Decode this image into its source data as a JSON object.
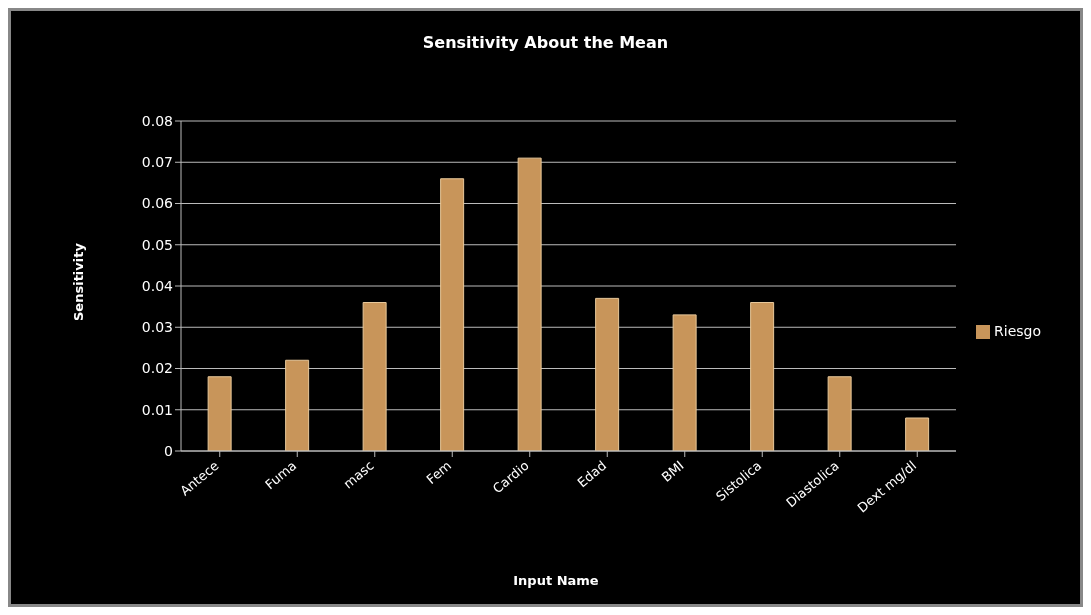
{
  "chart_data": {
    "type": "bar",
    "title": "Sensitivity About the Mean",
    "xlabel": "Input Name",
    "ylabel": "Sensitivity",
    "categories": [
      "Antece",
      "Fuma",
      "masc",
      "Fem",
      "Cardio",
      "Edad",
      "BMI",
      "Sistolica",
      "Diastolica",
      "Dext mg/dl"
    ],
    "series": [
      {
        "name": "Riesgo",
        "color": "#c8955a",
        "values": [
          0.018,
          0.022,
          0.036,
          0.066,
          0.071,
          0.037,
          0.033,
          0.036,
          0.018,
          0.008
        ]
      }
    ],
    "ylim": [
      0,
      0.08
    ],
    "yticks": [
      0,
      0.01,
      0.02,
      0.03,
      0.04,
      0.05,
      0.06,
      0.07,
      0.08
    ],
    "grid": "y",
    "legend": "right"
  }
}
